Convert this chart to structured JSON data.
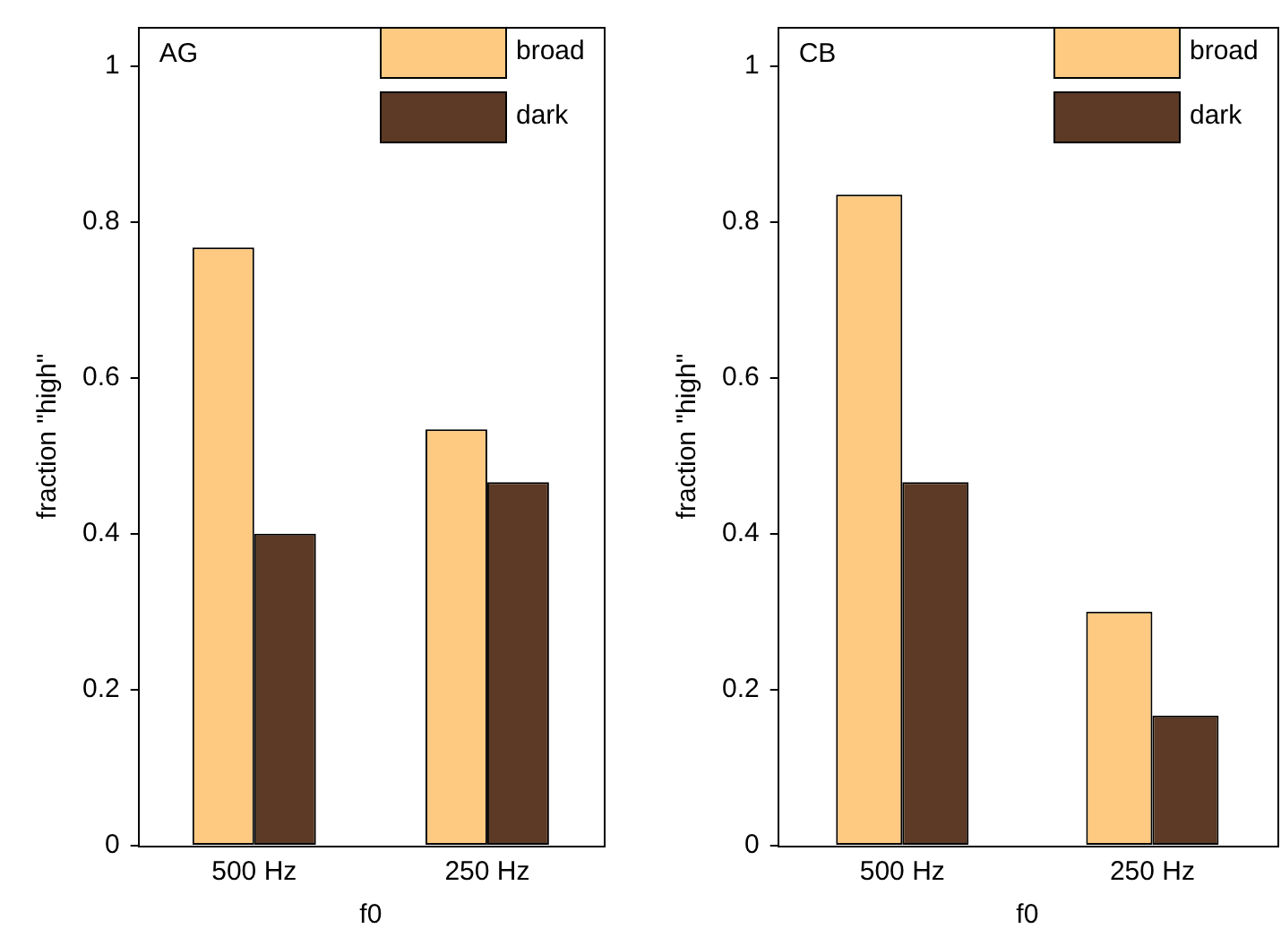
{
  "chart_data": [
    {
      "type": "bar",
      "xlabel": "f0",
      "ylabel": "fraction \"high\"",
      "annotations": [
        "AG"
      ],
      "categories": [
        "500 Hz",
        "250 Hz"
      ],
      "series": [
        {
          "name": "broad",
          "color": "#fec981",
          "values": [
            0.767,
            0.534
          ]
        },
        {
          "name": "dark",
          "color": "#5c3a26",
          "values": [
            0.4,
            0.466
          ]
        }
      ],
      "ylim": [
        0,
        1.05
      ],
      "yticks": [
        0,
        0.2,
        0.4,
        0.6,
        0.8,
        1
      ],
      "grid": false,
      "legend": "top right"
    },
    {
      "type": "bar",
      "xlabel": "f0",
      "ylabel": "fraction \"high\"",
      "annotations": [
        "CB"
      ],
      "categories": [
        "500 Hz",
        "250 Hz"
      ],
      "series": [
        {
          "name": "broad",
          "color": "#fec981",
          "values": [
            0.835,
            0.3
          ]
        },
        {
          "name": "dark",
          "color": "#5c3a26",
          "values": [
            0.466,
            0.167
          ]
        }
      ],
      "ylim": [
        0,
        1.05
      ],
      "yticks": [
        0,
        0.2,
        0.4,
        0.6,
        0.8,
        1
      ],
      "grid": false,
      "legend": "top right"
    }
  ]
}
